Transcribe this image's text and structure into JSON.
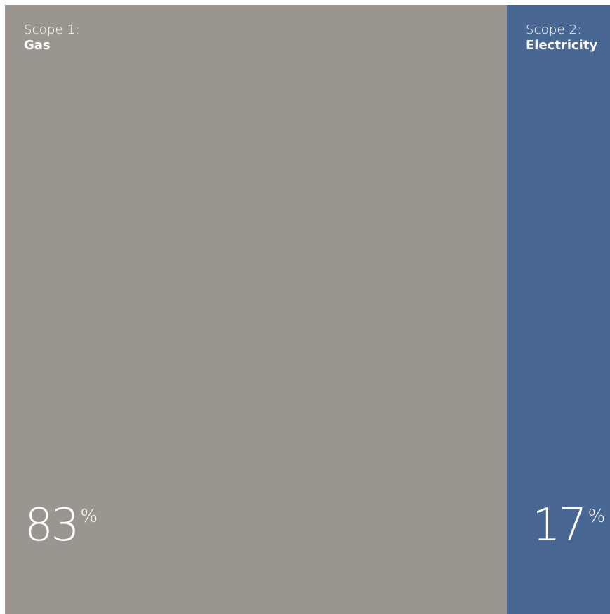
{
  "chart_data": {
    "type": "bar",
    "categories": [
      "Gas",
      "Electricity"
    ],
    "values": [
      83,
      17
    ],
    "unit": "%",
    "segments": [
      {
        "scope": "Scope 1:",
        "source": "Gas",
        "value": "83",
        "unit": "%",
        "percent": 83,
        "color": "#9a968f"
      },
      {
        "scope": "Scope 2:",
        "source": "Electricity",
        "value": "17",
        "unit": "%",
        "percent": 17,
        "color": "#496793"
      }
    ]
  }
}
